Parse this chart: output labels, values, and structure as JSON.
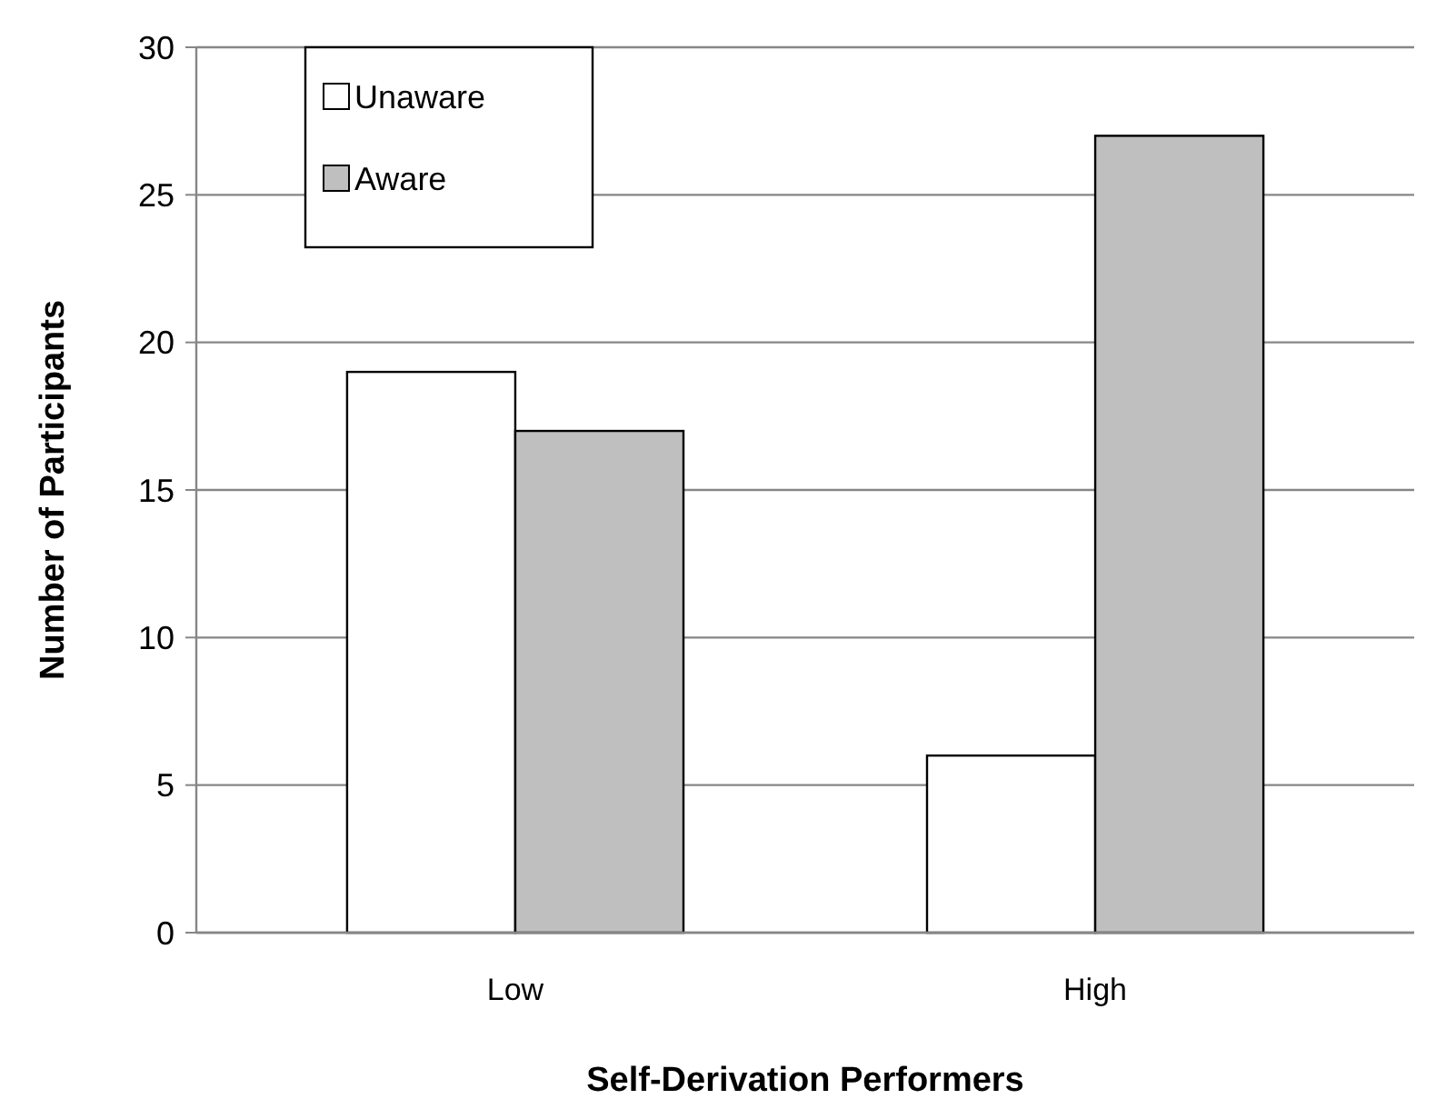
{
  "chart_data": {
    "type": "bar",
    "xlabel": "Self-Derivation Performers",
    "ylabel": "Number of Participants",
    "categories": [
      "Low",
      "High"
    ],
    "series": [
      {
        "name": "Unaware",
        "color": "#ffffff",
        "values": [
          19,
          6
        ]
      },
      {
        "name": "Aware",
        "color": "#bfbfbf",
        "values": [
          17,
          27
        ]
      }
    ],
    "ylim": [
      0,
      30
    ],
    "yticks": [
      0,
      5,
      10,
      15,
      20,
      25,
      30
    ],
    "grid": "y",
    "legend": "top left"
  }
}
